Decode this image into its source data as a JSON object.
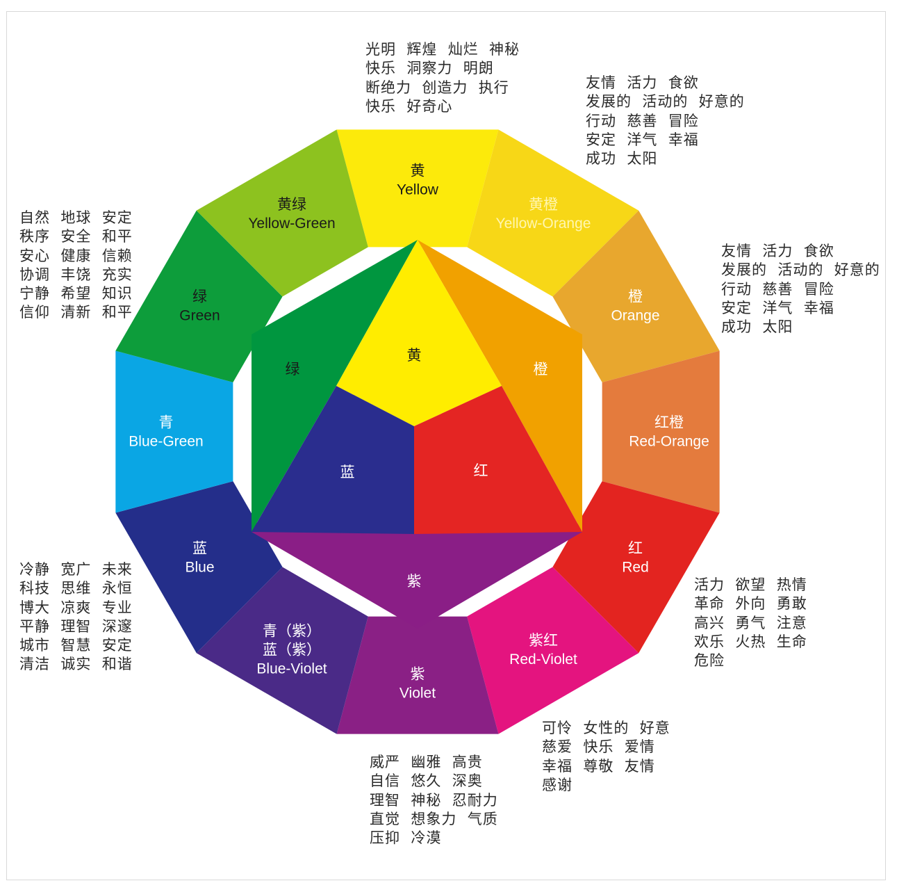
{
  "colors": {
    "yellow": "#FCEA0B",
    "yellow_orange": "#F7D717",
    "orange": "#E8A72E",
    "red_orange": "#E47B3D",
    "red": "#E32420",
    "red_violet": "#E4147F",
    "violet": "#8A2085",
    "blue_violet": "#4A2A87",
    "blue": "#242E8A",
    "blue_green": "#0AA6E4",
    "green": "#0D9D3B",
    "yellow_green": "#8DC21F",
    "hex_orange": "#F1A100",
    "hex_red": "#E42523",
    "hex_yellow": "#FFED00",
    "hex_green": "#00963F",
    "hex_blue": "#2A2D8E",
    "hex_violet": "#8A1E86"
  },
  "ring": [
    {
      "key": "yellow",
      "zh": "黄",
      "en": "Yellow"
    },
    {
      "key": "yellow_orange",
      "zh": "黄橙",
      "en": "Yellow-Orange"
    },
    {
      "key": "orange",
      "zh": "橙",
      "en": "Orange"
    },
    {
      "key": "red_orange",
      "zh": "红橙",
      "en": "Red-Orange"
    },
    {
      "key": "red",
      "zh": "红",
      "en": "Red"
    },
    {
      "key": "red_violet",
      "zh": "紫红",
      "en": "Red-Violet"
    },
    {
      "key": "violet",
      "zh": "紫",
      "en": "Violet"
    },
    {
      "key": "blue_violet",
      "zh": "青（紫）\n蓝（紫）",
      "en": "Blue-Violet"
    },
    {
      "key": "blue",
      "zh": "蓝",
      "en": "Blue"
    },
    {
      "key": "blue_green",
      "zh": "青",
      "en": "Blue-Green"
    },
    {
      "key": "green",
      "zh": "绿",
      "en": "Green"
    },
    {
      "key": "yellow_green",
      "zh": "黄绿",
      "en": "Yellow-Green"
    }
  ],
  "inner": {
    "yellow": "黄",
    "orange": "橙",
    "green": "绿",
    "blue": "蓝",
    "red": "红",
    "violet": "紫"
  },
  "annotations": {
    "yellow": "光明  辉煌  灿烂  神秘\n快乐  洞察力  明朗\n断绝力  创造力  执行\n快乐  好奇心",
    "yellow_orange": "友情  活力  食欲\n发展的  活动的  好意的\n行动  慈善  冒险\n安定  洋气  幸福\n成功  太阳",
    "orange": "友情  活力  食欲\n发展的  活动的  好意的\n行动  慈善  冒险\n安定  洋气  幸福\n成功  太阳",
    "red": "活力  欲望  热情\n革命  外向  勇敢\n高兴  勇气  注意\n欢乐  火热  生命\n危险",
    "red_violet": "可怜  女性的  好意\n慈爱  快乐  爱情\n幸福  尊敬  友情\n感谢",
    "violet": "威严  幽雅  高贵\n自信  悠久  深奥\n理智  神秘  忍耐力\n直觉  想象力  气质\n压抑  冷漠",
    "blue": "冷静  宽广  未来\n科技  思维  永恒\n博大  凉爽  专业\n平静  理智  深邃\n城市  智慧  安定\n清洁  诚实  和谐",
    "green": "自然  地球  安定\n秩序  安全  和平\n安心  健康  信赖\n协调  丰饶  充实\n宁静  希望  知识\n信仰  清新  和平"
  }
}
